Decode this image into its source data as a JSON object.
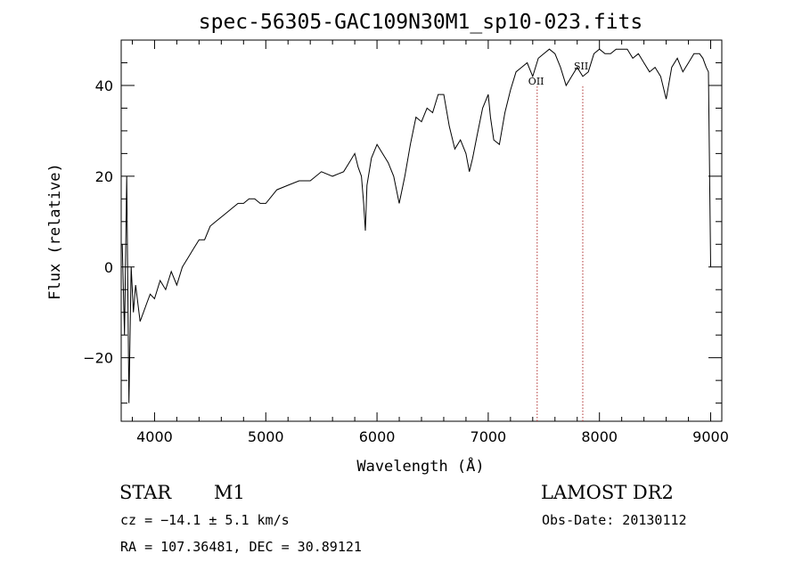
{
  "chart_data": {
    "type": "line",
    "title": "spec-56305-GAC109N30M1_sp10-023.fits",
    "xlabel": "Wavelength (Å)",
    "ylabel": "Flux (relative)",
    "xlim": [
      3700,
      9100
    ],
    "ylim": [
      -34,
      50
    ],
    "x_ticks": [
      4000,
      5000,
      6000,
      7000,
      8000,
      9000
    ],
    "x_tick_labels": [
      "4000",
      "5000",
      "6000",
      "7000",
      "8000",
      "9000"
    ],
    "y_ticks": [
      -20,
      0,
      20,
      40
    ],
    "y_tick_labels": [
      "−20",
      "0",
      "20",
      "40"
    ],
    "grid": false,
    "line_color": "#000000",
    "marker_color": "#b03030",
    "series": [
      {
        "x": [
          3710,
          3730,
          3750,
          3770,
          3790,
          3810,
          3830,
          3850,
          3870,
          3900,
          3930,
          3960,
          4000,
          4050,
          4100,
          4150,
          4200,
          4250,
          4300,
          4350,
          4400,
          4450,
          4500,
          4550,
          4600,
          4650,
          4700,
          4750,
          4800,
          4850,
          4900,
          4950,
          5000,
          5100,
          5200,
          5300,
          5400,
          5500,
          5600,
          5700,
          5750,
          5800,
          5830,
          5860,
          5880,
          5895,
          5910,
          5950,
          6000,
          6050,
          6100,
          6150,
          6200,
          6250,
          6300,
          6350,
          6400,
          6450,
          6500,
          6550,
          6600,
          6650,
          6700,
          6750,
          6800,
          6830,
          6860,
          6900,
          6950,
          7000,
          7020,
          7050,
          7100,
          7150,
          7200,
          7250,
          7300,
          7350,
          7400,
          7450,
          7500,
          7550,
          7600,
          7650,
          7700,
          7750,
          7800,
          7850,
          7900,
          7950,
          8000,
          8050,
          8100,
          8150,
          8200,
          8250,
          8300,
          8350,
          8400,
          8450,
          8500,
          8550,
          8600,
          8650,
          8700,
          8750,
          8800,
          8850,
          8900,
          8930,
          8960,
          8980,
          9000
        ],
        "y": [
          5,
          -15,
          20,
          -30,
          0,
          -10,
          -4,
          -8,
          -12,
          -10,
          -8,
          -6,
          -7,
          -3,
          -5,
          -1,
          -4,
          0,
          2,
          4,
          6,
          6,
          9,
          10,
          11,
          12,
          13,
          14,
          14,
          15,
          15,
          14,
          14,
          17,
          18,
          19,
          19,
          21,
          20,
          21,
          23,
          25,
          22,
          20,
          14,
          8,
          18,
          24,
          27,
          25,
          23,
          20,
          14,
          20,
          27,
          33,
          32,
          35,
          34,
          38,
          38,
          31,
          26,
          28,
          25,
          21,
          24,
          29,
          35,
          38,
          33,
          28,
          27,
          34,
          39,
          43,
          44,
          45,
          42,
          46,
          47,
          48,
          47,
          44,
          40,
          42,
          44,
          42,
          43,
          47,
          48,
          47,
          47,
          48,
          48,
          48,
          46,
          47,
          45,
          43,
          44,
          42,
          37,
          44,
          46,
          43,
          45,
          47,
          47,
          46,
          44,
          43,
          0
        ]
      }
    ],
    "markers": [
      {
        "label": "OII",
        "x": 7440
      },
      {
        "label": "SII",
        "x": 7850
      }
    ]
  },
  "info": {
    "object_type": "STAR",
    "subclass": "M1",
    "survey": "LAMOST DR2",
    "velocity": "cz = −14.1 ± 5.1 km/s",
    "obs_date": "Obs-Date: 20130112",
    "coords": "RA = 107.36481, DEC =  30.89121"
  }
}
